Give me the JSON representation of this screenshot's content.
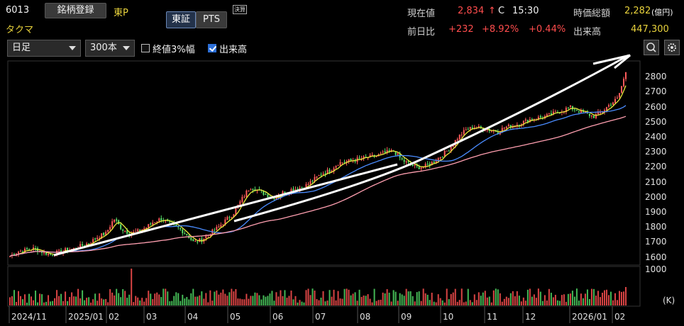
{
  "header": {
    "code": "6013",
    "name": "タクマ",
    "register_button": "銘柄登録",
    "market": "東P",
    "tab_tosho": "東証",
    "tab_pts": "PTS",
    "kessan_badge": "決算",
    "current_label": "現在値",
    "current_value": "2,834",
    "current_arrow": "↑",
    "current_flag": "C",
    "current_time": "15:30",
    "mcap_label": "時価総額",
    "mcap_value": "2,282",
    "mcap_unit": "(億円)",
    "change_label": "前日比",
    "change_value": "+232",
    "change_pct": "+8.92%",
    "change_pct2": "+0.44%",
    "volume_label": "出来高",
    "volume_value": "447,300"
  },
  "toolbar": {
    "period_select": "日足",
    "count_select": "300本",
    "check_close3": "終値3%幅",
    "check_close3_on": false,
    "check_volume": "出来高",
    "check_volume_on": true
  },
  "chart_data": {
    "type": "candlestick",
    "title": "",
    "y_ticks": [
      "2800",
      "2700",
      "2600",
      "2500",
      "2400",
      "2300",
      "2200",
      "2100",
      "2000",
      "1900",
      "1800",
      "1700",
      "1600"
    ],
    "ylim": [
      1560,
      2900
    ],
    "x_ticks": [
      "2024/11",
      "2025/01",
      "02",
      "03",
      "04",
      "05",
      "06",
      "07",
      "08",
      "09",
      "10",
      "11",
      "12",
      "2026/01",
      "02"
    ],
    "volume_max_label": "1000",
    "volume_unit": "(K)",
    "close_series": [
      1610,
      1640,
      1650,
      1660,
      1640,
      1620,
      1635,
      1650,
      1660,
      1680,
      1700,
      1740,
      1760,
      1860,
      1790,
      1760,
      1775,
      1800,
      1840,
      1860,
      1820,
      1800,
      1760,
      1700,
      1720,
      1760,
      1800,
      1850,
      1900,
      1990,
      2070,
      2050,
      2020,
      2000,
      2030,
      2050,
      2060,
      2080,
      2120,
      2160,
      2180,
      2230,
      2240,
      2250,
      2260,
      2270,
      2280,
      2300,
      2310,
      2250,
      2220,
      2200,
      2210,
      2240,
      2280,
      2330,
      2400,
      2450,
      2470,
      2460,
      2450,
      2440,
      2470,
      2480,
      2500,
      2520,
      2530,
      2540,
      2560,
      2580,
      2600,
      2580,
      2560,
      2540,
      2570,
      2620,
      2660,
      2834
    ],
    "ma_short_color": "#e8e83c",
    "ma_mid_color": "#4a8cff",
    "ma_long_color": "#ff9fb0",
    "trend_line_color": "#ffffff"
  }
}
